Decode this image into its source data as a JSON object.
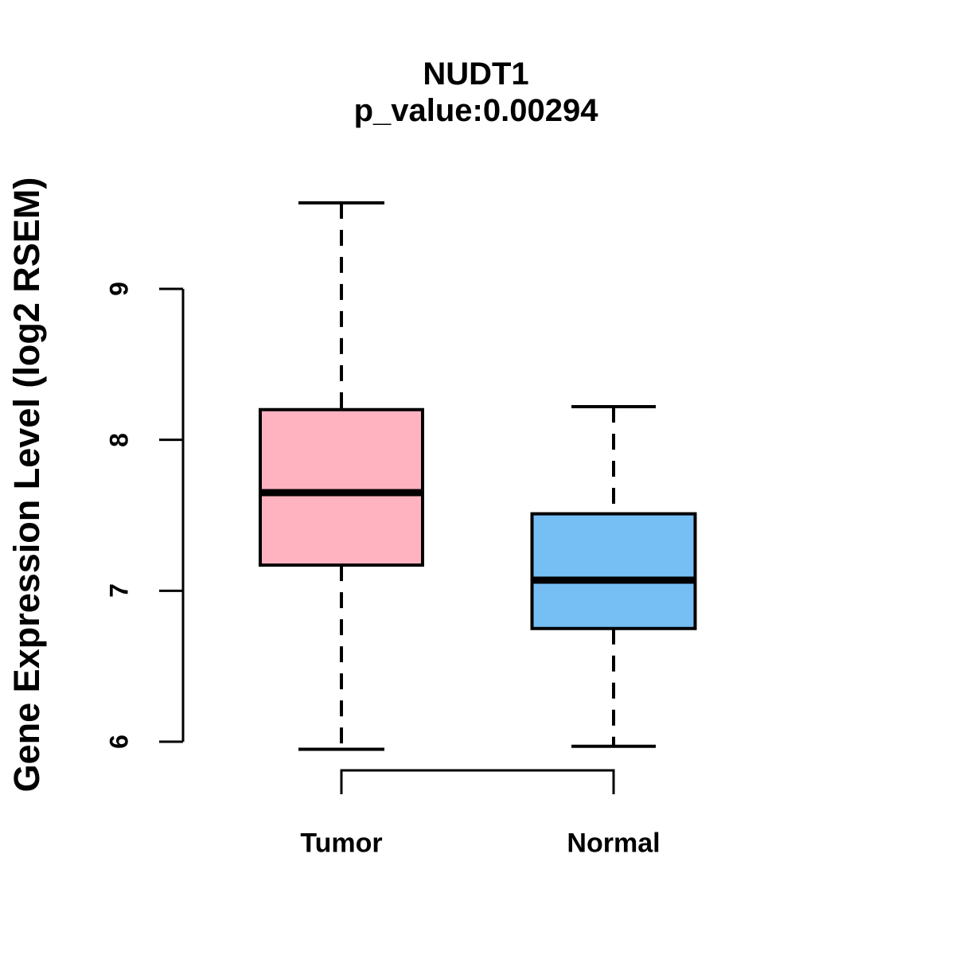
{
  "figure": {
    "title": "NUDT1",
    "subtitle": "p_value:0.00294",
    "background_color": "#FFFFFF",
    "line_color": "#000000"
  },
  "chart_data": {
    "type": "boxplot",
    "title": "NUDT1",
    "subtitle": "p_value:0.00294",
    "xlabel": "",
    "ylabel": "Gene Expression Level (log2 RSEM)",
    "categories": [
      "Tumor",
      "Normal"
    ],
    "yticks": [
      6,
      7,
      8,
      9
    ],
    "ylim": [
      5.7,
      9.8
    ],
    "grid": false,
    "legend": "none",
    "series": [
      {
        "name": "Tumor",
        "whisker_low": 5.95,
        "q1": 7.17,
        "median": 7.65,
        "q3": 8.2,
        "whisker_high": 9.57,
        "fill_color": "#FFB3C1",
        "border_color": "#000000"
      },
      {
        "name": "Normal",
        "whisker_low": 5.97,
        "q1": 6.75,
        "median": 7.07,
        "q3": 7.51,
        "whisker_high": 8.22,
        "fill_color": "#76BFF5",
        "border_color": "#000000"
      }
    ],
    "comparison_bracket": {
      "between": [
        "Tumor",
        "Normal"
      ],
      "p_value_label": "p_value:0.00294"
    }
  }
}
